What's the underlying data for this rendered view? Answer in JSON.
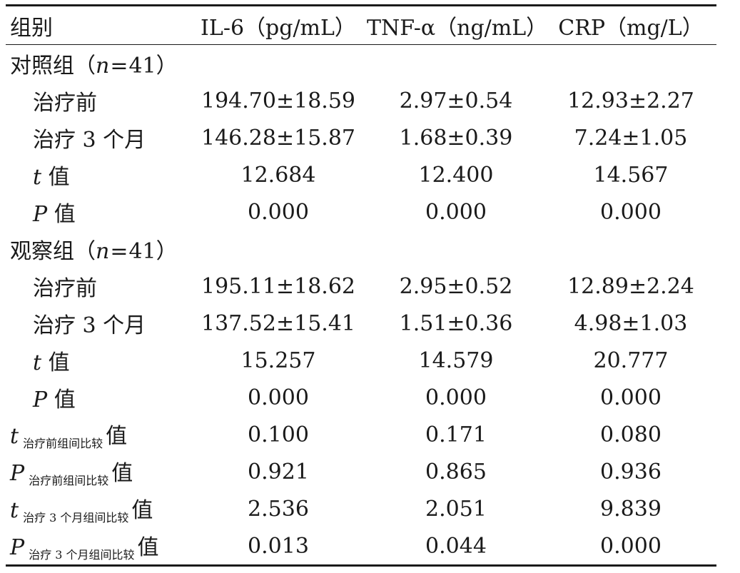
{
  "header": {
    "group": "组别",
    "il6": "IL-6（pg/mL）",
    "tnf": "TNF-α（ng/mL）",
    "crp": "CRP（mg/L）"
  },
  "control": {
    "name": "对照组",
    "n_label": "n",
    "n_value": "41",
    "before": {
      "label": "治疗前",
      "il6": "194.70±18.59",
      "tnf": "2.97±0.54",
      "crp": "12.93±2.27"
    },
    "after": {
      "label": "治疗 3 个月",
      "il6": "146.28±15.87",
      "tnf": "1.68±0.39",
      "crp": "7.24±1.05"
    },
    "t": {
      "sym": "t",
      "label": "值",
      "il6": "12.684",
      "tnf": "12.400",
      "crp": "14.567"
    },
    "p": {
      "sym": "P",
      "label": "值",
      "il6": "0.000",
      "tnf": "0.000",
      "crp": "0.000"
    }
  },
  "observation": {
    "name": "观察组",
    "n_label": "n",
    "n_value": "41",
    "before": {
      "label": "治疗前",
      "il6": "195.11±18.62",
      "tnf": "2.95±0.52",
      "crp": "12.89±2.24"
    },
    "after": {
      "label": "治疗 3 个月",
      "il6": "137.52±15.41",
      "tnf": "1.51±0.36",
      "crp": "4.98±1.03"
    },
    "t": {
      "sym": "t",
      "label": "值",
      "il6": "15.257",
      "tnf": "14.579",
      "crp": "20.777"
    },
    "p": {
      "sym": "P",
      "label": "值",
      "il6": "0.000",
      "tnf": "0.000",
      "crp": "0.000"
    }
  },
  "between": {
    "t_before": {
      "sym": "t",
      "sub": "治疗前组间比较",
      "label": "值",
      "il6": "0.100",
      "tnf": "0.171",
      "crp": "0.080"
    },
    "p_before": {
      "sym": "P",
      "sub": "治疗前组间比较",
      "label": "值",
      "il6": "0.921",
      "tnf": "0.865",
      "crp": "0.936"
    },
    "t_after": {
      "sym": "t",
      "sub": "治疗 3 个月组间比较",
      "label": "值",
      "il6": "2.536",
      "tnf": "2.051",
      "crp": "9.839"
    },
    "p_after": {
      "sym": "P",
      "sub": "治疗 3 个月组间比较",
      "label": "值",
      "il6": "0.013",
      "tnf": "0.044",
      "crp": "0.000"
    }
  }
}
